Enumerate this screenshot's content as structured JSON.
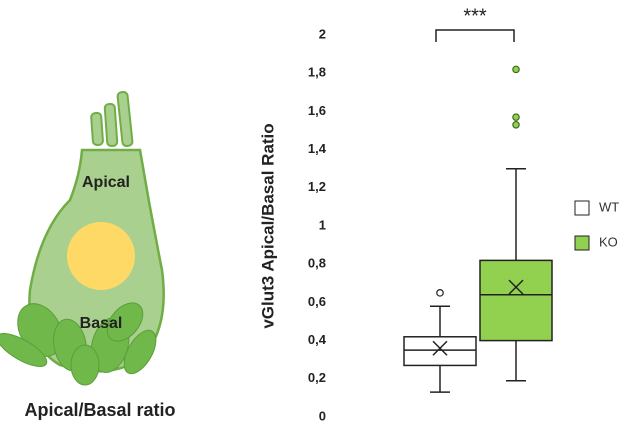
{
  "chart_data": {
    "type": "box",
    "ylabel": "vGlut3 Apical/Basal Ratio",
    "annotation": "***",
    "illustration": {
      "top_label": "Apical",
      "bottom_label": "Basal",
      "caption": "Apical/Basal ratio"
    },
    "ylim": [
      0,
      2
    ],
    "yticks": [
      0,
      {
        "value": 0.2,
        "label": "0,2"
      },
      {
        "value": 0.4,
        "label": "0,4"
      },
      {
        "value": 0.6,
        "label": "0,6"
      },
      {
        "value": 0.8,
        "label": "0,8"
      },
      1,
      {
        "value": 1.2,
        "label": "1,2"
      },
      {
        "value": 1.4,
        "label": "1,4"
      },
      {
        "value": 1.6,
        "label": "1,6"
      },
      {
        "value": 1.8,
        "label": "1,8"
      },
      2
    ],
    "legend": "right",
    "series": [
      {
        "name": "WT",
        "color": "#ffffff",
        "whisker_low": 0.13,
        "q1": 0.27,
        "median": 0.35,
        "q3": 0.42,
        "whisker_high": 0.58,
        "mean": 0.36,
        "outliers": [
          0.65
        ]
      },
      {
        "name": "KO",
        "color": "#92d050",
        "whisker_low": 0.19,
        "q1": 0.4,
        "median": 0.64,
        "q3": 0.82,
        "whisker_high": 1.3,
        "mean": 0.68,
        "outliers": [
          1.82,
          1.57,
          1.53
        ]
      }
    ]
  }
}
